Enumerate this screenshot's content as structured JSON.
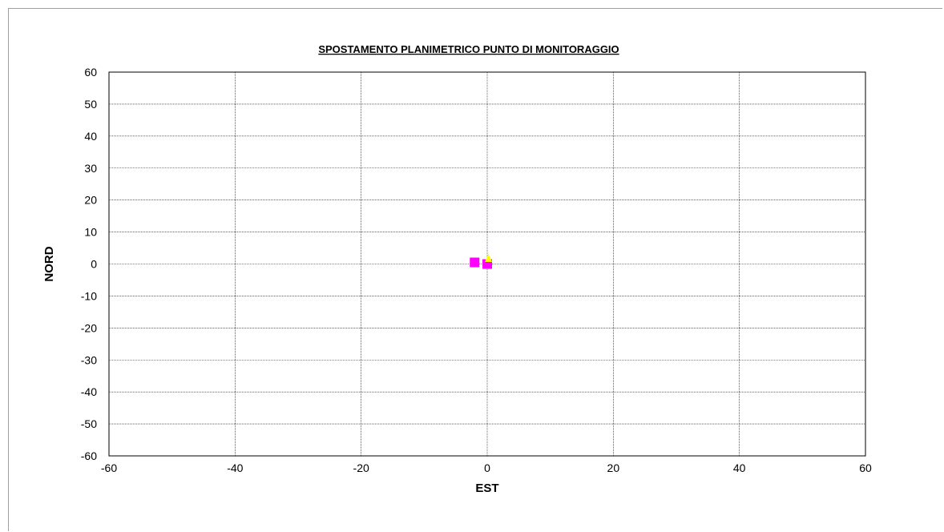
{
  "chart_data": {
    "type": "scatter",
    "title": "SPOSTAMENTO PLANIMETRICO PUNTO DI MONITORAGGIO",
    "xlabel": "EST",
    "ylabel": "NORD",
    "xlim": [
      -60,
      60
    ],
    "ylim": [
      -60,
      60
    ],
    "xticks": [
      -60,
      -40,
      -20,
      0,
      20,
      40,
      60
    ],
    "yticks": [
      60,
      50,
      40,
      30,
      20,
      10,
      0,
      -10,
      -20,
      -30,
      -40,
      -50,
      -60
    ],
    "grid": true,
    "series": [
      {
        "marker": "square",
        "color": "#ff00ff",
        "points": [
          {
            "x": -2,
            "y": 0.5
          },
          {
            "x": 0,
            "y": 0
          }
        ]
      },
      {
        "marker": "triangle",
        "color": "#ffff00",
        "points": [
          {
            "x": 0.2,
            "y": 1.8
          }
        ]
      }
    ]
  }
}
